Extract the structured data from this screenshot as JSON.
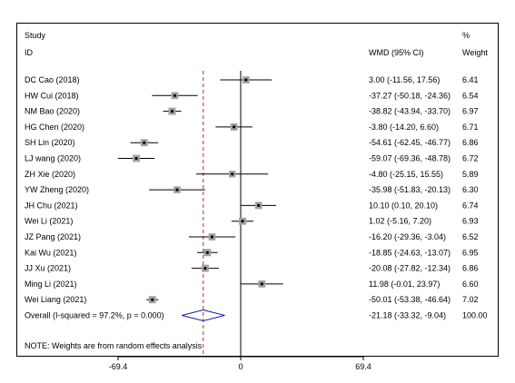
{
  "chart_data": {
    "type": "forest",
    "header": {
      "study_line1": "Study",
      "study_line2": "ID",
      "effect_label": "WMD (95% CI)",
      "weight_line1": "%",
      "weight_line2": "Weight"
    },
    "studies": [
      {
        "id": "DC Cao (2018)",
        "est": 3.0,
        "lo": -11.56,
        "hi": 17.56,
        "ci_text": "3.00 (-11.56, 17.56)",
        "weight": 6.41,
        "weight_text": "6.41"
      },
      {
        "id": "HW Cui (2018)",
        "est": -37.27,
        "lo": -50.18,
        "hi": -24.36,
        "ci_text": "-37.27 (-50.18, -24.36)",
        "weight": 6.54,
        "weight_text": "6.54"
      },
      {
        "id": "NM Bao (2020)",
        "est": -38.82,
        "lo": -43.94,
        "hi": -33.7,
        "ci_text": "-38.82 (-43.94, -33.70)",
        "weight": 6.97,
        "weight_text": "6.97"
      },
      {
        "id": "HG Chen (2020)",
        "est": -3.8,
        "lo": -14.2,
        "hi": 6.6,
        "ci_text": "-3.80 (-14.20, 6.60)",
        "weight": 6.71,
        "weight_text": "6.71"
      },
      {
        "id": "SH Lin (2020)",
        "est": -54.61,
        "lo": -62.45,
        "hi": -46.77,
        "ci_text": "-54.61 (-62.45, -46.77)",
        "weight": 6.86,
        "weight_text": "6.86"
      },
      {
        "id": "LJ wang (2020)",
        "est": -59.07,
        "lo": -69.36,
        "hi": -48.78,
        "ci_text": "-59.07 (-69.36, -48.78)",
        "weight": 6.72,
        "weight_text": "6.72"
      },
      {
        "id": "ZH Xie (2020)",
        "est": -4.8,
        "lo": -25.15,
        "hi": 15.55,
        "ci_text": "-4.80 (-25.15, 15.55)",
        "weight": 5.89,
        "weight_text": "5.89"
      },
      {
        "id": "YW Zheng (2020)",
        "est": -35.98,
        "lo": -51.83,
        "hi": -20.13,
        "ci_text": "-35.98 (-51.83, -20.13)",
        "weight": 6.3,
        "weight_text": "6.30"
      },
      {
        "id": "JH Chu (2021)",
        "est": 10.1,
        "lo": 0.1,
        "hi": 20.1,
        "ci_text": "10.10 (0.10, 20.10)",
        "weight": 6.74,
        "weight_text": "6.74"
      },
      {
        "id": "Wei Li (2021)",
        "est": 1.02,
        "lo": -5.16,
        "hi": 7.2,
        "ci_text": "1.02 (-5.16, 7.20)",
        "weight": 6.93,
        "weight_text": "6.93"
      },
      {
        "id": "JZ Pang (2021)",
        "est": -16.2,
        "lo": -29.36,
        "hi": -3.04,
        "ci_text": "-16.20 (-29.36, -3.04)",
        "weight": 6.52,
        "weight_text": "6.52"
      },
      {
        "id": "Kai Wu (2021)",
        "est": -18.85,
        "lo": -24.63,
        "hi": -13.07,
        "ci_text": "-18.85 (-24.63, -13.07)",
        "weight": 6.95,
        "weight_text": "6.95"
      },
      {
        "id": "JJ Xu (2021)",
        "est": -20.08,
        "lo": -27.82,
        "hi": -12.34,
        "ci_text": "-20.08 (-27.82, -12.34)",
        "weight": 6.86,
        "weight_text": "6.86"
      },
      {
        "id": "Ming Li (2021)",
        "est": 11.98,
        "lo": -0.01,
        "hi": 23.97,
        "ci_text": "11.98 (-0.01, 23.97)",
        "weight": 6.6,
        "weight_text": "6.60"
      },
      {
        "id": "Wei Liang (2021)",
        "est": -50.01,
        "lo": -53.38,
        "hi": -46.64,
        "ci_text": "-50.01 (-53.38, -46.64)",
        "weight": 7.02,
        "weight_text": "7.02"
      }
    ],
    "overall": {
      "label": "Overall  (I-squared = 97.2%, p = 0.000)",
      "est": -21.18,
      "lo": -33.32,
      "hi": -9.04,
      "ci_text": "-21.18 (-33.32, -9.04)",
      "weight_text": "100.00"
    },
    "note": "NOTE: Weights are from random effects analysis",
    "xaxis": {
      "range": [
        -69.4,
        69.4
      ],
      "ticks": [
        -69.4,
        0,
        69.4
      ],
      "tick_labels": [
        "-69.4",
        "0",
        "69.4"
      ]
    },
    "null_line": 0,
    "colors": {
      "frame": "#000000",
      "ci_line": "#000000",
      "point": "#000000",
      "weight_box": "#a0a0a0",
      "overall_diamond": "#1a1aa8",
      "overall_line": "#b03030"
    }
  }
}
